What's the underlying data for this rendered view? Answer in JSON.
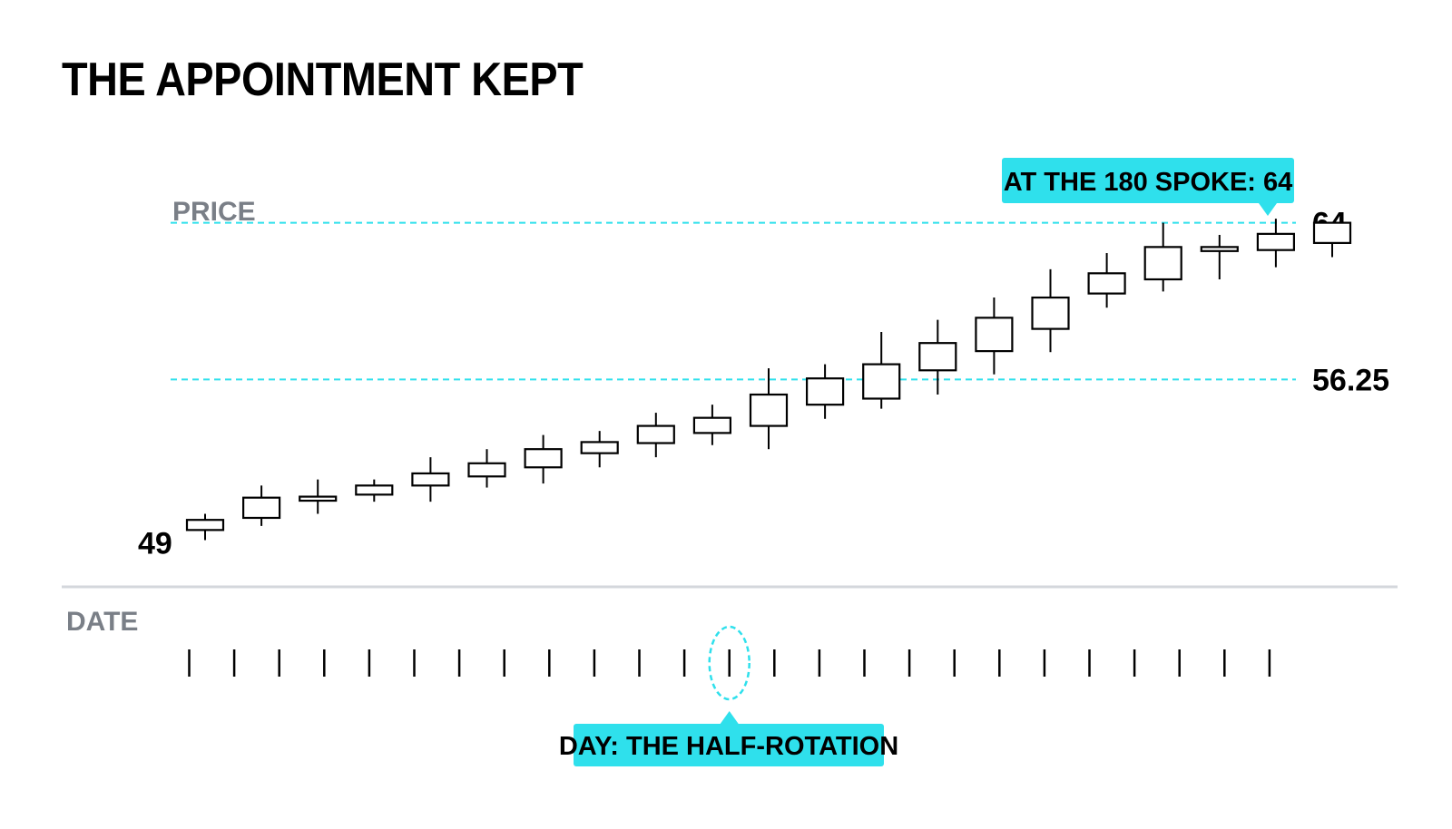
{
  "title": "THE APPOINTMENT KEPT",
  "colors": {
    "accent": "#2fe0ec",
    "ink": "#000000",
    "axis_label": "#7a7f87",
    "baseline": "#d4d7dc"
  },
  "chart_data": {
    "type": "candlestick",
    "title": "THE APPOINTMENT KEPT",
    "ylabel": "PRICE",
    "xlabel": "DATE",
    "ylim": [
      47.2,
      64.7
    ],
    "y_labels": {
      "start": "49",
      "mid": "56.25",
      "end": "64"
    },
    "reference_lines": [
      {
        "value": 64,
        "label": "64",
        "style": "dashed"
      },
      {
        "value": 56.25,
        "label": "56.25",
        "style": "dashed"
      }
    ],
    "callouts": {
      "price": "AT THE 180 SPOKE: 64",
      "date": "DAY: THE HALF-ROTATION"
    },
    "highlight_day_index": 12,
    "tick_count": 25,
    "candles": [
      {
        "open": 48.8,
        "close": 49.3,
        "high": 49.6,
        "low": 48.3
      },
      {
        "open": 49.4,
        "close": 50.4,
        "high": 51.0,
        "low": 49.0
      },
      {
        "open": 50.25,
        "close": 50.45,
        "high": 51.3,
        "low": 49.6
      },
      {
        "open": 50.55,
        "close": 51.0,
        "high": 51.3,
        "low": 50.2
      },
      {
        "open": 51.0,
        "close": 51.6,
        "high": 52.4,
        "low": 50.2
      },
      {
        "open": 51.45,
        "close": 52.1,
        "high": 52.8,
        "low": 50.9
      },
      {
        "open": 51.9,
        "close": 52.8,
        "high": 53.5,
        "low": 51.1
      },
      {
        "open": 52.6,
        "close": 53.15,
        "high": 53.7,
        "low": 51.9
      },
      {
        "open": 53.1,
        "close": 53.95,
        "high": 54.6,
        "low": 52.4
      },
      {
        "open": 53.6,
        "close": 54.35,
        "high": 55.0,
        "low": 53.0
      },
      {
        "open": 53.95,
        "close": 55.5,
        "high": 56.8,
        "low": 52.8
      },
      {
        "open": 55.0,
        "close": 56.3,
        "high": 57.0,
        "low": 54.3
      },
      {
        "open": 55.3,
        "close": 57.0,
        "high": 58.6,
        "low": 54.8
      },
      {
        "open": 56.7,
        "close": 58.05,
        "high": 59.2,
        "low": 55.5
      },
      {
        "open": 57.65,
        "close": 59.3,
        "high": 60.3,
        "low": 56.5
      },
      {
        "open": 58.75,
        "close": 60.3,
        "high": 61.7,
        "low": 57.6
      },
      {
        "open": 60.5,
        "close": 61.5,
        "high": 62.5,
        "low": 59.8
      },
      {
        "open": 61.2,
        "close": 62.8,
        "high": 64.0,
        "low": 60.6
      },
      {
        "open": 62.6,
        "close": 62.8,
        "high": 63.4,
        "low": 61.2
      },
      {
        "open": 62.65,
        "close": 63.45,
        "high": 64.2,
        "low": 61.8
      },
      {
        "open": 63.0,
        "close": 64.0,
        "high": 64.0,
        "low": 62.3
      }
    ]
  }
}
